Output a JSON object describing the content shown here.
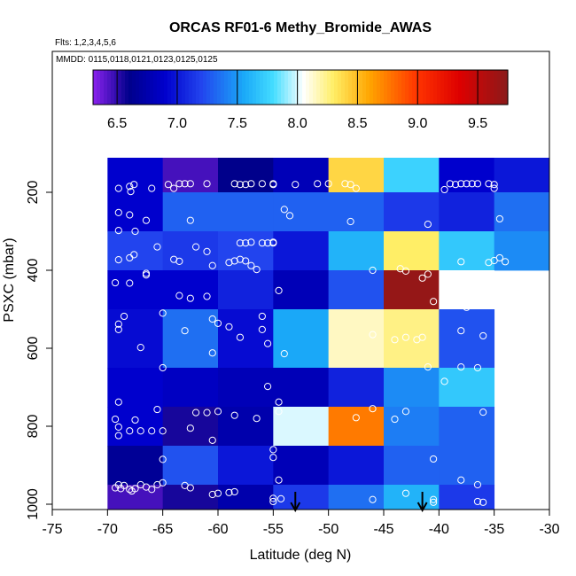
{
  "chart_data": {
    "type": "heatmap",
    "title": "ORCAS RF01-6 Methy_Bromide_AWAS",
    "flights_label": "Flts: 1,2,3,4,5,6",
    "mmdd_label": "MMDD: 0115,0118,0121,0123,0125,0125",
    "xlabel": "Latitude (deg N)",
    "ylabel": "PSXC (mbar)",
    "xlim": [
      -75,
      -30
    ],
    "ylim": [
      1000,
      0
    ],
    "x_ticks": [
      -75,
      -70,
      -65,
      -60,
      -55,
      -50,
      -45,
      -40,
      -35,
      -30
    ],
    "y_ticks": [
      200,
      400,
      600,
      800,
      1000
    ],
    "colorbar": {
      "range": [
        6.3,
        9.75
      ],
      "ticks": [
        6.5,
        7.0,
        7.5,
        8.0,
        8.5,
        9.0,
        9.5
      ],
      "tick_labels": [
        "6.5",
        "7.0",
        "7.5",
        "8.0",
        "8.5",
        "9.0",
        "9.5"
      ],
      "stops": [
        [
          6.3,
          "#8b22ee"
        ],
        [
          6.6,
          "#00008b"
        ],
        [
          6.9,
          "#0000cd"
        ],
        [
          7.2,
          "#2244ee"
        ],
        [
          7.55,
          "#1aa8f8"
        ],
        [
          7.8,
          "#44ddff"
        ],
        [
          8.05,
          "#ffffff"
        ],
        [
          8.3,
          "#ffee66"
        ],
        [
          8.6,
          "#ffa500"
        ],
        [
          9.0,
          "#ff3300"
        ],
        [
          9.35,
          "#dd0000"
        ],
        [
          9.75,
          "#8b1a1a"
        ]
      ]
    },
    "columns": [
      -70,
      -65,
      -60,
      -55,
      -50,
      -45,
      -40,
      -35,
      -30
    ],
    "rows": [
      {
        "p": [
          100,
          200
        ],
        "values": [
          6.9,
          6.45,
          6.6,
          6.8,
          8.4,
          7.75,
          6.9,
          7.0
        ]
      },
      {
        "p": [
          200,
          300
        ],
        "values": [
          6.9,
          7.3,
          7.3,
          7.3,
          7.3,
          7.15,
          7.05,
          7.35
        ]
      },
      {
        "p": [
          300,
          400
        ],
        "values": [
          7.2,
          7.15,
          7.2,
          7.0,
          7.6,
          8.3,
          7.7,
          7.45
        ]
      },
      {
        "p": [
          400,
          500
        ],
        "values": [
          6.9,
          6.9,
          7.05,
          6.8,
          7.25,
          9.7,
          8.05,
          null
        ]
      },
      {
        "p": [
          500,
          650
        ],
        "values": [
          6.95,
          7.35,
          6.95,
          7.55,
          8.15,
          8.25,
          7.25,
          null
        ]
      },
      {
        "p": [
          650,
          750
        ],
        "values": [
          6.9,
          6.85,
          6.8,
          6.8,
          7.05,
          7.45,
          7.7,
          null
        ]
      },
      {
        "p": [
          750,
          850
        ],
        "values": [
          6.9,
          6.55,
          6.75,
          8.0,
          8.75,
          7.4,
          7.3,
          null
        ]
      },
      {
        "p": [
          850,
          950
        ],
        "values": [
          6.65,
          7.25,
          7.0,
          6.8,
          7.0,
          7.3,
          7.3,
          null
        ]
      },
      {
        "p": [
          950,
          1050
        ],
        "values": [
          6.45,
          6.55,
          6.75,
          7.15,
          7.35,
          7.6,
          7.15,
          null
        ]
      }
    ],
    "arrows_lat": [
      -53,
      -41.5
    ],
    "samples": [
      [
        -69,
        190
      ],
      [
        -68,
        185
      ],
      [
        -67.6,
        180
      ],
      [
        -67.9,
        198
      ],
      [
        -66,
        190
      ],
      [
        -64.5,
        180
      ],
      [
        -64,
        190
      ],
      [
        -63.5,
        178
      ],
      [
        -63,
        178
      ],
      [
        -62.5,
        178
      ],
      [
        -61,
        178
      ],
      [
        -58.5,
        178
      ],
      [
        -58,
        180
      ],
      [
        -57.5,
        180
      ],
      [
        -57,
        178
      ],
      [
        -56,
        178
      ],
      [
        -55,
        180
      ],
      [
        -55,
        178
      ],
      [
        -53,
        180
      ],
      [
        -51,
        178
      ],
      [
        -50,
        178
      ],
      [
        -48.5,
        178
      ],
      [
        -48,
        180
      ],
      [
        -47.5,
        190
      ],
      [
        -39,
        178
      ],
      [
        -38.5,
        180
      ],
      [
        -38,
        178
      ],
      [
        -37.5,
        178
      ],
      [
        -37,
        178
      ],
      [
        -36.5,
        178
      ],
      [
        -35.5,
        178
      ],
      [
        -35,
        180
      ],
      [
        -35,
        190
      ],
      [
        -39.5,
        193
      ],
      [
        -69,
        252
      ],
      [
        -68,
        258
      ],
      [
        -66.5,
        272
      ],
      [
        -62.5,
        272
      ],
      [
        -54,
        244
      ],
      [
        -53.5,
        260
      ],
      [
        -48,
        275
      ],
      [
        -41,
        282
      ],
      [
        -34.5,
        268
      ],
      [
        -69,
        298
      ],
      [
        -67.5,
        300
      ],
      [
        -69,
        373
      ],
      [
        -68,
        368
      ],
      [
        -67.6,
        360
      ],
      [
        -66.5,
        408
      ],
      [
        -65.5,
        340
      ],
      [
        -64,
        372
      ],
      [
        -63.5,
        377
      ],
      [
        -62,
        340
      ],
      [
        -61,
        352
      ],
      [
        -60.5,
        388
      ],
      [
        -59,
        380
      ],
      [
        -58.5,
        376
      ],
      [
        -58,
        372
      ],
      [
        -57.5,
        376
      ],
      [
        -57,
        388
      ],
      [
        -56.5,
        398
      ],
      [
        -58,
        330
      ],
      [
        -57.5,
        330
      ],
      [
        -57,
        328
      ],
      [
        -56,
        330
      ],
      [
        -55,
        330
      ],
      [
        -55,
        328
      ],
      [
        -55.5,
        330
      ],
      [
        -46,
        400
      ],
      [
        -43,
        402
      ],
      [
        -43.5,
        396
      ],
      [
        -41.5,
        420
      ],
      [
        -41,
        410
      ],
      [
        -38,
        378
      ],
      [
        -35.5,
        380
      ],
      [
        -35,
        375
      ],
      [
        -34.5,
        368
      ],
      [
        -34,
        378
      ],
      [
        -69.3,
        432
      ],
      [
        -68,
        433
      ],
      [
        -66.5,
        412
      ],
      [
        -63.5,
        465
      ],
      [
        -62.5,
        472
      ],
      [
        -61,
        467
      ],
      [
        -54.5,
        452
      ],
      [
        -40.5,
        480
      ],
      [
        -37.5,
        495
      ],
      [
        -37,
        480
      ],
      [
        -68.5,
        518
      ],
      [
        -69,
        538
      ],
      [
        -69,
        552
      ],
      [
        -65,
        510
      ],
      [
        -63,
        555
      ],
      [
        -60.5,
        525
      ],
      [
        -60,
        536
      ],
      [
        -59,
        545
      ],
      [
        -58,
        572
      ],
      [
        -56,
        518
      ],
      [
        -56,
        552
      ],
      [
        -55.5,
        588
      ],
      [
        -46,
        565
      ],
      [
        -44,
        578
      ],
      [
        -43,
        572
      ],
      [
        -42,
        578
      ],
      [
        -41.5,
        572
      ],
      [
        -38,
        555
      ],
      [
        -36,
        568
      ],
      [
        -67,
        598
      ],
      [
        -65,
        650
      ],
      [
        -60.5,
        612
      ],
      [
        -54,
        614
      ],
      [
        -55.5,
        698
      ],
      [
        -41,
        648
      ],
      [
        -39.5,
        685
      ],
      [
        -38,
        648
      ],
      [
        -36.5,
        650
      ],
      [
        -69,
        738
      ],
      [
        -69.3,
        782
      ],
      [
        -69,
        802
      ],
      [
        -68,
        812
      ],
      [
        -67.5,
        784
      ],
      [
        -67,
        812
      ],
      [
        -66,
        812
      ],
      [
        -65.5,
        757
      ],
      [
        -65,
        812
      ],
      [
        -62.5,
        805
      ],
      [
        -62,
        765
      ],
      [
        -61,
        765
      ],
      [
        -60,
        762
      ],
      [
        -58.5,
        772
      ],
      [
        -56.5,
        780
      ],
      [
        -54.5,
        738
      ],
      [
        -54.5,
        762
      ],
      [
        -47.5,
        778
      ],
      [
        -46,
        755
      ],
      [
        -44,
        782
      ],
      [
        -43,
        762
      ],
      [
        -36,
        764
      ],
      [
        -69,
        824
      ],
      [
        -65,
        885
      ],
      [
        -60.5,
        836
      ],
      [
        -55,
        860
      ],
      [
        -55,
        880
      ],
      [
        -40.5,
        884
      ],
      [
        -69,
        950
      ],
      [
        -69.3,
        958
      ],
      [
        -68.8,
        960
      ],
      [
        -68.5,
        952
      ],
      [
        -68,
        962
      ],
      [
        -67.8,
        966
      ],
      [
        -67.5,
        960
      ],
      [
        -67,
        950
      ],
      [
        -66.5,
        956
      ],
      [
        -66,
        962
      ],
      [
        -65.5,
        950
      ],
      [
        -65,
        945
      ],
      [
        -63,
        952
      ],
      [
        -62.5,
        958
      ],
      [
        -60.5,
        975
      ],
      [
        -60,
        972
      ],
      [
        -59,
        970
      ],
      [
        -58.5,
        968
      ],
      [
        -55,
        985
      ],
      [
        -55,
        993
      ],
      [
        -54.5,
        938
      ],
      [
        -54.3,
        986
      ],
      [
        -46,
        988
      ],
      [
        -43,
        972
      ],
      [
        -40.5,
        988
      ],
      [
        -40.5,
        995
      ],
      [
        -38,
        938
      ],
      [
        -36.5,
        950
      ],
      [
        -36.5,
        993
      ],
      [
        -36,
        995
      ]
    ]
  }
}
